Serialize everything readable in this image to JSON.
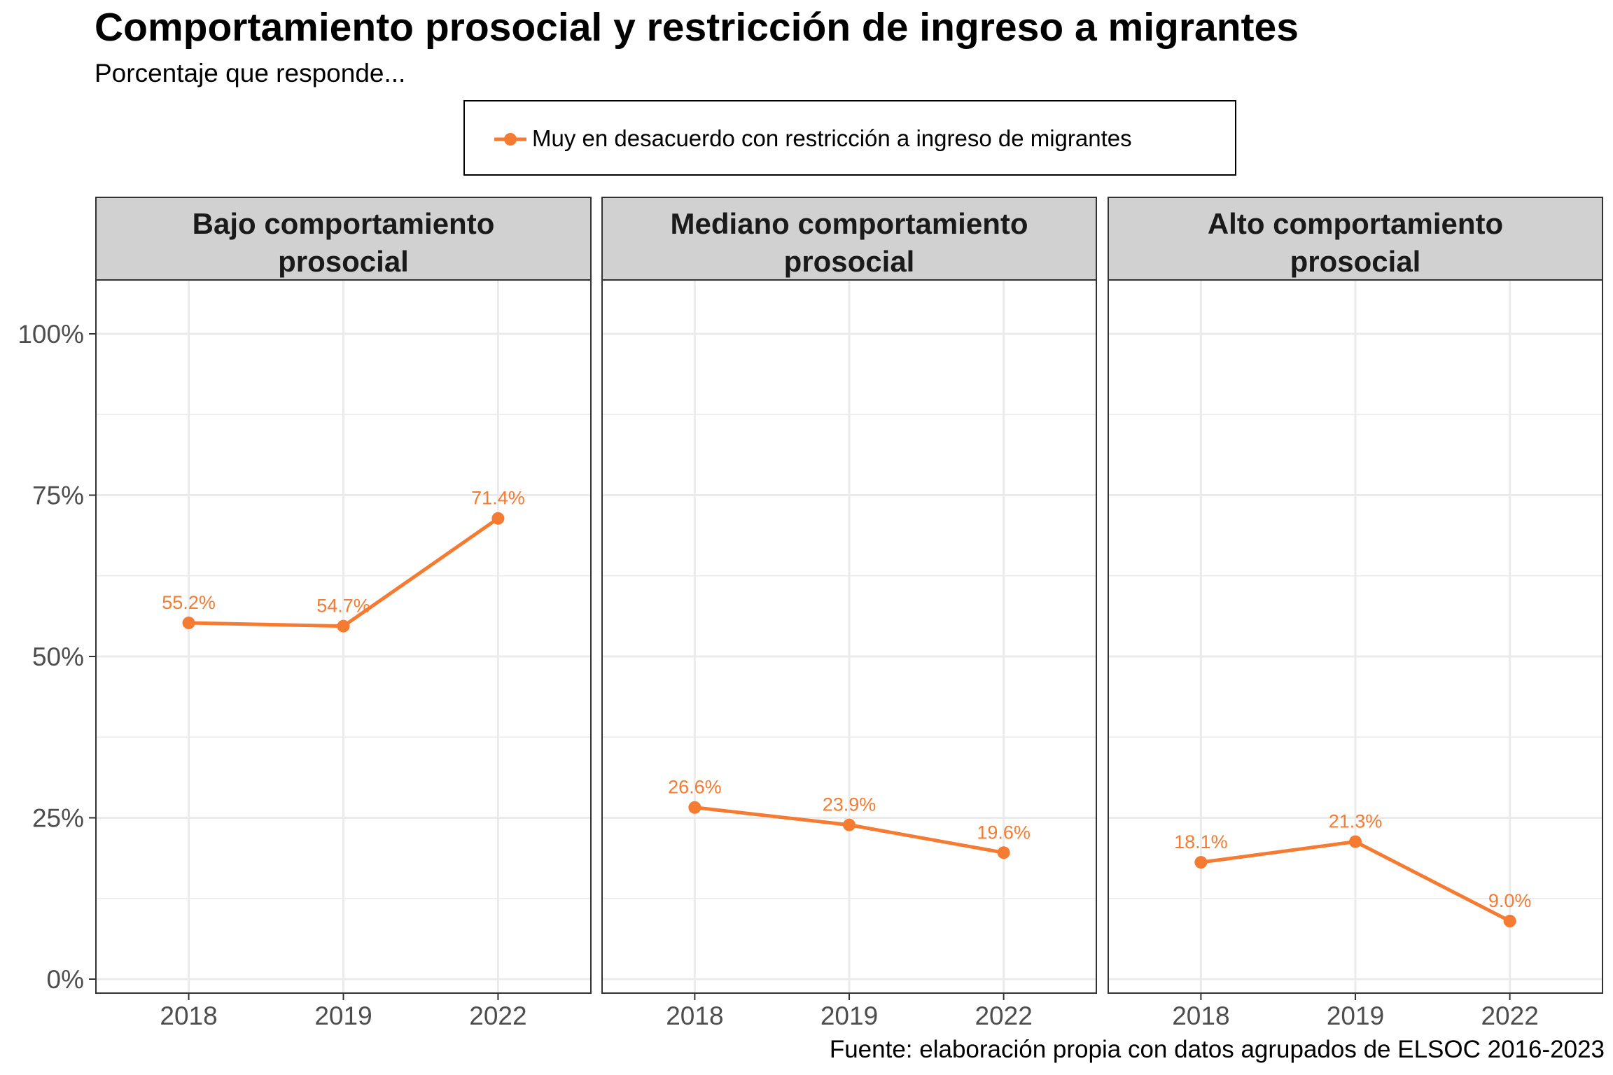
{
  "title": "Comportamiento prosocial y restricción de ingreso a migrantes",
  "subtitle": "Porcentaje que responde...",
  "caption": "Fuente: elaboración propia con datos agrupados de ELSOC 2016-2023",
  "legend": {
    "label": "Muy en desacuerdo con restricción a ingreso de migrantes",
    "placement": "top"
  },
  "colors": {
    "series": "#F47B31",
    "strip_fill": "#D1D1D1",
    "grid": "#EBEBEB"
  },
  "chart_data": {
    "type": "line",
    "x": [
      "2018",
      "2019",
      "2022"
    ],
    "ylim": [
      0,
      100
    ],
    "y_ticks": [
      "0%",
      "25%",
      "50%",
      "75%",
      "100%"
    ],
    "grid": true,
    "panels": [
      {
        "title": [
          "Bajo comportamiento",
          "prosocial"
        ],
        "series": [
          {
            "name": "Muy en desacuerdo con restricción a ingreso de migrantes",
            "values": [
              55.2,
              54.7,
              71.4
            ],
            "labels": [
              "55.2%",
              "54.7%",
              "71.4%"
            ]
          }
        ]
      },
      {
        "title": [
          "Mediano comportamiento",
          "prosocial"
        ],
        "series": [
          {
            "name": "Muy en desacuerdo con restricción a ingreso de migrantes",
            "values": [
              26.6,
              23.9,
              19.6
            ],
            "labels": [
              "26.6%",
              "23.9%",
              "19.6%"
            ]
          }
        ]
      },
      {
        "title": [
          "Alto comportamiento",
          "prosocial"
        ],
        "series": [
          {
            "name": "Muy en desacuerdo con restricción a ingreso de migrantes",
            "values": [
              18.1,
              21.3,
              9.0
            ],
            "labels": [
              "18.1%",
              "21.3%",
              "9.0%"
            ]
          }
        ]
      }
    ]
  }
}
